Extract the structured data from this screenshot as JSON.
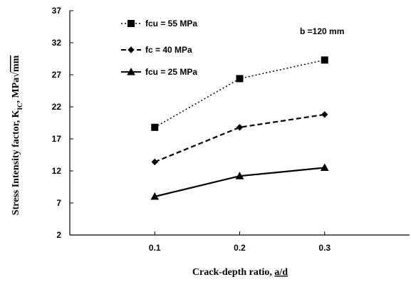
{
  "chart_data": {
    "type": "line",
    "xlabel": "Crack-depth ratio, a/d",
    "xlabel_prefix": "Crack-depth ratio, ",
    "xlabel_var": "a/d",
    "ylabel": "Stress Intensity factor, K",
    "ylabel_sub": "IC",
    "ylabel_unit": ", MPa",
    "ylabel_root": "mm",
    "x_ticks": [
      0.1,
      0.2,
      0.3
    ],
    "x_tick_labels": [
      "0.1",
      "0.2",
      "0.3"
    ],
    "y_ticks": [
      2,
      7,
      12,
      17,
      22,
      27,
      32,
      37
    ],
    "y_tick_labels": [
      "2",
      "7",
      "12",
      "17",
      "22",
      "27",
      "32",
      "37"
    ],
    "xlim": [
      0.0,
      0.4
    ],
    "ylim": [
      2,
      37
    ],
    "grid": false,
    "legend_position": "top-left",
    "annotation": "b =120 mm",
    "series": [
      {
        "name": "fcu = 55 MPa",
        "x": [
          0.1,
          0.2,
          0.3
        ],
        "values": [
          18.8,
          26.4,
          29.3
        ],
        "line_style": "dotted",
        "marker": "square"
      },
      {
        "name": "fc = 40 MPa",
        "x": [
          0.1,
          0.2,
          0.3
        ],
        "values": [
          13.4,
          18.8,
          20.8
        ],
        "line_style": "dashed",
        "marker": "diamond"
      },
      {
        "name": "fcu = 25 MPa",
        "x": [
          0.1,
          0.2,
          0.3
        ],
        "values": [
          8.0,
          11.2,
          12.5
        ],
        "line_style": "solid",
        "marker": "triangle"
      }
    ],
    "colors": {
      "line": "#000000",
      "background": "#ffffff"
    }
  }
}
